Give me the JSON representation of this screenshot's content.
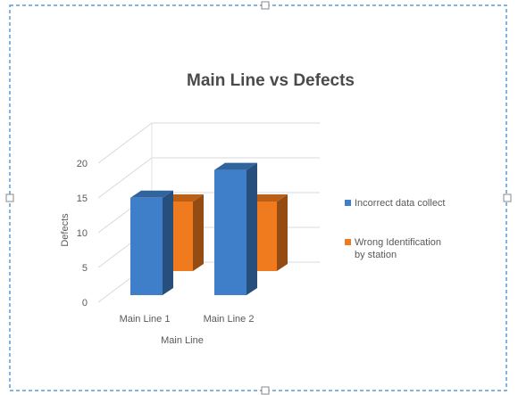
{
  "chart_data": {
    "type": "bar",
    "title": "Main Line vs Defects",
    "xlabel": "Main Line",
    "ylabel": "Defects",
    "categories": [
      "Main Line 1",
      "Main Line 2"
    ],
    "series": [
      {
        "name": "Incorrect data collect",
        "values": [
          14,
          18
        ],
        "color": "#3f7fc9"
      },
      {
        "name": "Wrong Identification by station",
        "values": [
          10,
          10
        ],
        "color": "#f07a1e"
      }
    ],
    "ylim": [
      0,
      20
    ],
    "yticks": [
      0,
      5,
      10,
      15,
      20
    ],
    "grid": true,
    "three_d": true,
    "legend_position": "right"
  },
  "frame": {
    "style": "dashed-selection-border",
    "border_color": "#5b9bd5"
  }
}
